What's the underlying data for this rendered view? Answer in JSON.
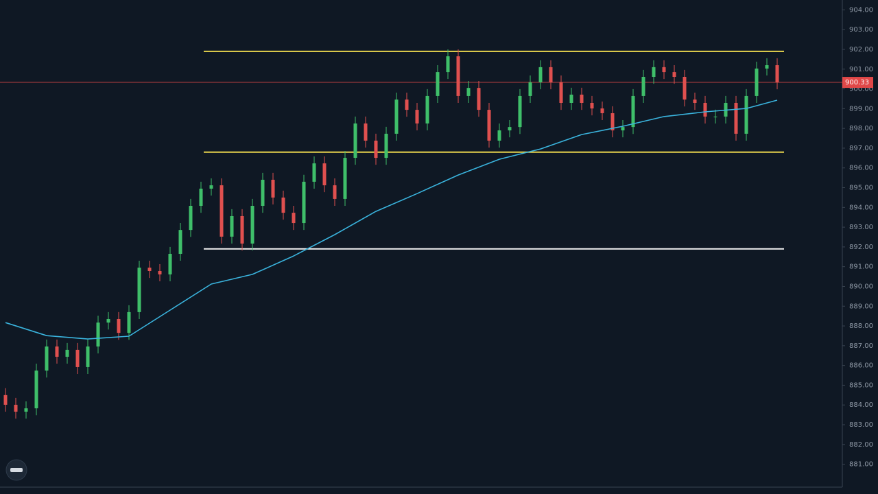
{
  "chart_data": {
    "type": "candlestick",
    "up_color": "#3fbf6a",
    "down_color": "#e0504f",
    "ylim": [
      880.5,
      904.5
    ],
    "yticks": [
      {
        "value": 904,
        "label": "904.00"
      },
      {
        "value": 903,
        "label": "903.00"
      },
      {
        "value": 902,
        "label": "902.00"
      },
      {
        "value": 901,
        "label": "901.00"
      },
      {
        "value": 900,
        "label": "900.00"
      },
      {
        "value": 899,
        "label": "899.00"
      },
      {
        "value": 898,
        "label": "898.00"
      },
      {
        "value": 897,
        "label": "897.00"
      },
      {
        "value": 896,
        "label": "896.00"
      },
      {
        "value": 895,
        "label": "895.00"
      },
      {
        "value": 894,
        "label": "894.00"
      },
      {
        "value": 893,
        "label": "893.00"
      },
      {
        "value": 892,
        "label": "892.00"
      },
      {
        "value": 891,
        "label": "891.00"
      },
      {
        "value": 890,
        "label": "890.00"
      },
      {
        "value": 889,
        "label": "889.00"
      },
      {
        "value": 888,
        "label": "888.00"
      },
      {
        "value": 887,
        "label": "887.00"
      },
      {
        "value": 886,
        "label": "886.00"
      },
      {
        "value": 885,
        "label": "885.00"
      },
      {
        "value": 884,
        "label": "884.00"
      },
      {
        "value": 883,
        "label": "883.00"
      },
      {
        "value": 882,
        "label": "882.00"
      },
      {
        "value": 881,
        "label": "881.00"
      }
    ],
    "open": [
      884.5,
      884.01,
      883.66,
      883.83,
      885.74,
      886.96,
      886.44,
      886.79,
      885.92,
      886.96,
      888.17,
      888.35,
      887.65,
      888.7,
      890.95,
      890.78,
      890.61,
      891.65,
      892.86,
      894.08,
      894.95,
      895.12,
      892.52,
      893.56,
      892.17,
      894.08,
      895.4,
      894.5,
      893.73,
      893.21,
      895.3,
      896.23,
      895.12,
      894.43,
      896.51,
      898.25,
      897.38,
      896.51,
      897.73,
      899.46,
      898.94,
      898.25,
      899.64,
      900.85,
      901.65,
      899.64,
      900.05,
      898.94,
      897.38,
      897.9,
      898.07,
      899.64,
      900.33,
      901.1,
      900.33,
      899.29,
      899.71,
      899.29,
      899.01,
      898.77,
      897.9,
      898.07,
      899.64,
      900.61,
      901.1,
      900.85,
      900.61,
      899.46,
      899.29,
      898.6,
      898.6,
      899.29,
      897.73,
      899.64,
      901.03,
      901.2
    ],
    "high": [
      884.85,
      884.36,
      884.18,
      886.09,
      887.31,
      887.31,
      887.14,
      887.14,
      887.31,
      888.52,
      888.7,
      888.7,
      889.05,
      891.3,
      891.3,
      891.13,
      892.0,
      893.21,
      894.43,
      895.3,
      895.47,
      895.47,
      893.91,
      893.91,
      894.43,
      895.75,
      895.75,
      894.85,
      894.08,
      895.65,
      896.58,
      896.58,
      895.47,
      896.86,
      898.6,
      898.6,
      897.73,
      898.08,
      899.81,
      899.81,
      899.29,
      899.99,
      901.2,
      902.0,
      902.0,
      900.4,
      900.4,
      899.29,
      898.25,
      898.42,
      899.99,
      900.68,
      901.45,
      901.45,
      900.68,
      900.06,
      900.06,
      899.64,
      899.36,
      899.12,
      898.42,
      899.99,
      900.96,
      901.45,
      901.45,
      901.2,
      900.96,
      899.81,
      899.64,
      898.95,
      899.64,
      899.64,
      899.99,
      901.38,
      901.55,
      901.55
    ],
    "low": [
      883.66,
      883.31,
      883.31,
      883.48,
      885.39,
      886.09,
      886.09,
      885.57,
      885.57,
      886.61,
      887.82,
      887.3,
      887.3,
      888.35,
      890.43,
      890.26,
      890.26,
      891.3,
      892.51,
      893.73,
      894.6,
      892.17,
      892.17,
      891.82,
      891.82,
      893.73,
      894.15,
      893.38,
      892.86,
      892.86,
      894.95,
      894.77,
      894.08,
      894.08,
      896.16,
      897.03,
      896.16,
      896.16,
      897.38,
      898.59,
      897.9,
      897.9,
      899.29,
      900.5,
      899.29,
      899.29,
      898.59,
      897.03,
      897.03,
      897.55,
      897.72,
      899.29,
      899.98,
      899.98,
      898.94,
      898.94,
      898.94,
      898.66,
      898.42,
      897.55,
      897.55,
      897.72,
      899.29,
      900.26,
      900.5,
      900.26,
      899.11,
      898.94,
      898.25,
      898.25,
      898.25,
      897.38,
      897.38,
      899.29,
      900.68,
      899.98
    ],
    "close": [
      884.01,
      883.66,
      883.83,
      885.74,
      886.96,
      886.44,
      886.79,
      885.92,
      886.96,
      888.17,
      888.35,
      887.65,
      888.7,
      890.95,
      890.78,
      890.61,
      891.65,
      892.86,
      894.08,
      894.95,
      895.12,
      892.52,
      893.56,
      892.17,
      894.08,
      895.4,
      894.5,
      893.73,
      893.21,
      895.3,
      896.23,
      895.12,
      894.43,
      896.51,
      898.25,
      897.38,
      896.51,
      897.73,
      899.46,
      898.94,
      898.25,
      899.64,
      900.85,
      901.65,
      899.64,
      900.05,
      898.94,
      897.38,
      897.9,
      898.07,
      899.64,
      900.33,
      901.1,
      900.33,
      899.29,
      899.71,
      899.29,
      899.01,
      898.77,
      897.9,
      898.07,
      899.64,
      900.61,
      901.1,
      900.85,
      900.61,
      899.46,
      899.29,
      898.6,
      898.6,
      899.29,
      897.73,
      899.64,
      901.03,
      901.2,
      900.33
    ],
    "ma": {
      "color": "#3ab4de",
      "x": [
        0,
        4,
        8,
        12,
        16,
        20,
        24,
        28,
        32,
        36,
        40,
        44,
        48,
        52,
        56,
        60,
        64,
        68,
        72,
        75
      ],
      "values": [
        888.17,
        887.51,
        887.34,
        887.48,
        888.8,
        890.12,
        890.61,
        891.54,
        892.62,
        893.8,
        894.7,
        895.64,
        896.44,
        896.96,
        897.69,
        898.11,
        898.6,
        898.84,
        899.01,
        899.43
      ]
    },
    "levels": [
      {
        "value": 901.9,
        "color": "#e8d44d"
      },
      {
        "value": 896.8,
        "color": "#e8d44d"
      },
      {
        "value": 891.9,
        "color": "#f2f2f2"
      }
    ],
    "last_price": {
      "value": 900.33,
      "color": "#e04848"
    }
  }
}
